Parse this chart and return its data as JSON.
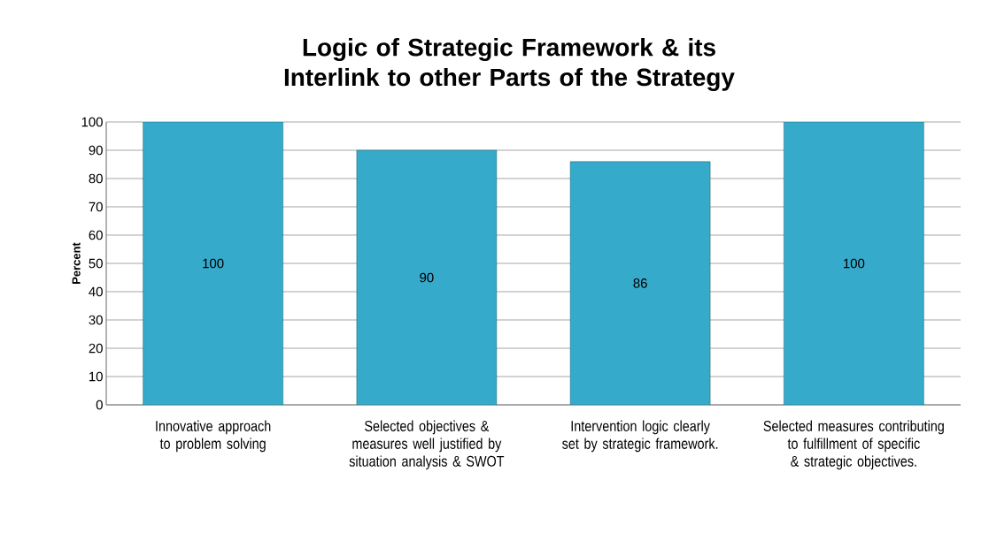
{
  "chart_data": {
    "type": "bar",
    "title": "Logic of Strategic Framework & its Interlink to other Parts of the Strategy",
    "ylabel": "Percent",
    "categories": [
      "Innovative approach to problem solving",
      "Selected objectives & measures well justified by situation analysis & SWOT",
      "Intervention logic clearly set by strategic framework.",
      "Selected measures contributing to fulfillment of specific & strategic objectives."
    ],
    "values": [
      100,
      90,
      86,
      100
    ],
    "color": "#36aacb",
    "ylim": [
      0,
      100
    ],
    "yticks": [
      0,
      10,
      20,
      30,
      40,
      50,
      60,
      70,
      80,
      90,
      100
    ],
    "grid": "y",
    "data_labels": true
  }
}
